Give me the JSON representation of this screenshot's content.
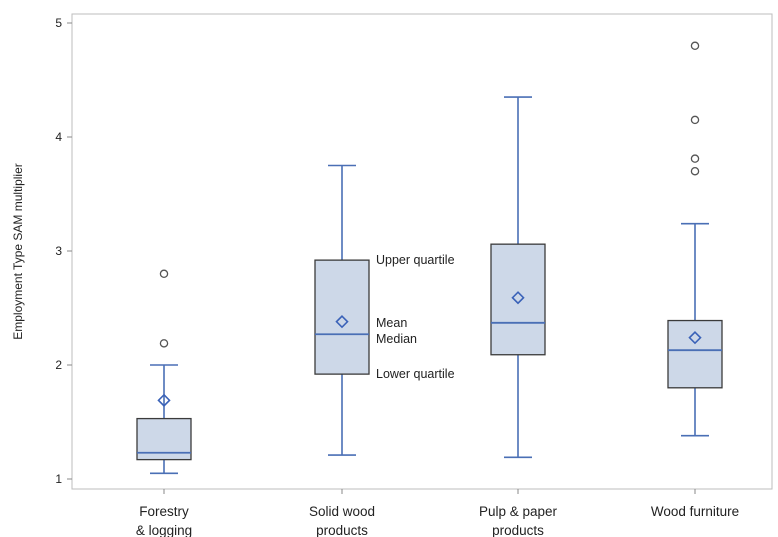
{
  "chart_data": {
    "type": "box",
    "ylabel": "Employment Type SAM multiplier",
    "xlabel": "",
    "ylim": [
      1,
      5
    ],
    "yticks": [
      1,
      2,
      3,
      4,
      5
    ],
    "grid": false,
    "colors": {
      "box_fill": "#cdd8e8",
      "box_stroke": "#3b3b3b",
      "whisker": "#4a6fb5",
      "median": "#4a6fb5",
      "mean": "#3a62b8",
      "outlier": "#555555"
    },
    "categories": [
      {
        "label": [
          "Forestry",
          "& logging"
        ],
        "q1": 1.17,
        "median": 1.23,
        "q3": 1.53,
        "mean": 1.69,
        "whisker_low": 1.05,
        "whisker_high": 2.0,
        "outliers": [
          2.19,
          2.8
        ]
      },
      {
        "label": [
          "Solid wood",
          "products"
        ],
        "q1": 1.92,
        "median": 2.27,
        "q3": 2.92,
        "mean": 2.38,
        "whisker_low": 1.21,
        "whisker_high": 3.75,
        "outliers": []
      },
      {
        "label": [
          "Pulp & paper",
          "products"
        ],
        "q1": 2.09,
        "median": 2.37,
        "q3": 3.06,
        "mean": 2.59,
        "whisker_low": 1.19,
        "whisker_high": 4.35,
        "outliers": []
      },
      {
        "label": [
          "Wood furniture"
        ],
        "q1": 1.8,
        "median": 2.13,
        "q3": 2.39,
        "mean": 2.24,
        "whisker_low": 1.38,
        "whisker_high": 3.24,
        "outliers": [
          3.7,
          3.81,
          4.15,
          4.8
        ]
      }
    ],
    "annotations": {
      "upper_quartile": "Upper quartile",
      "mean": "Mean",
      "median": "Median",
      "lower_quartile": "Lower quartile"
    }
  }
}
